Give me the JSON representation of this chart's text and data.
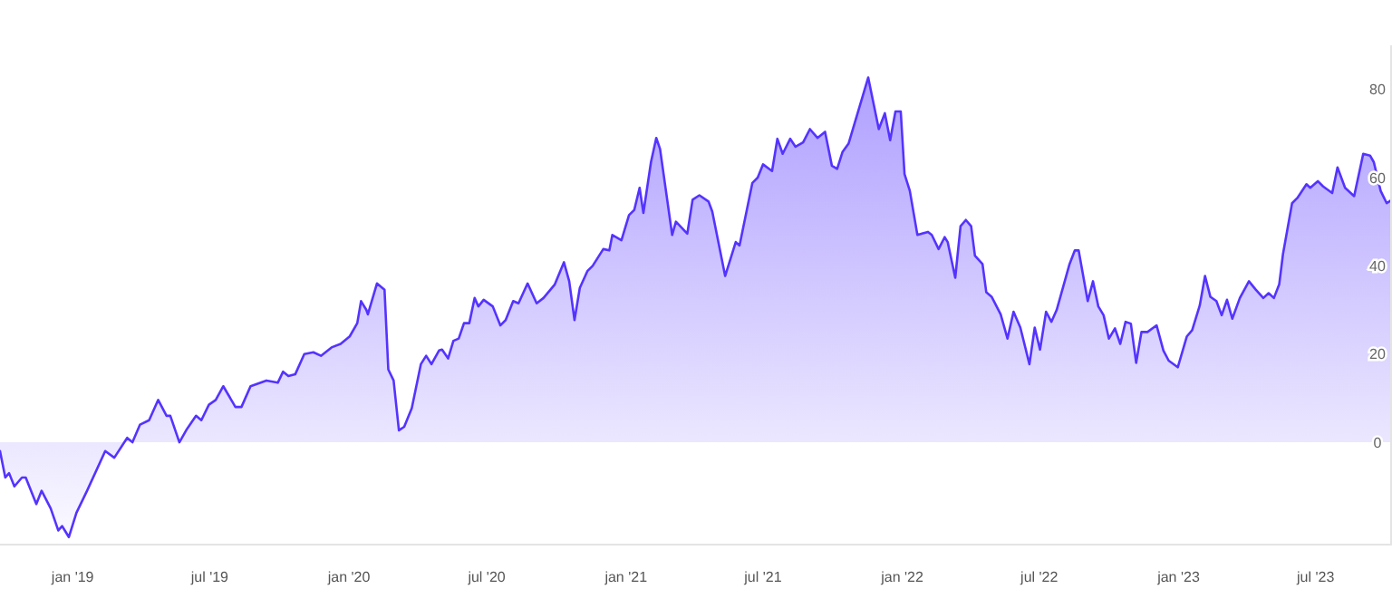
{
  "chart_data": {
    "type": "area",
    "xlim": [
      "2018-09-27",
      "2023-10-10"
    ],
    "ylim": [
      -23,
      90
    ],
    "xticks": [
      {
        "value": "2019-01-01",
        "label": "jan '19"
      },
      {
        "value": "2019-07-01",
        "label": "jul '19"
      },
      {
        "value": "2020-01-01",
        "label": "jan '20"
      },
      {
        "value": "2020-07-01",
        "label": "jul '20"
      },
      {
        "value": "2021-01-01",
        "label": "jan '21"
      },
      {
        "value": "2021-07-01",
        "label": "jul '21"
      },
      {
        "value": "2022-01-01",
        "label": "jan '22"
      },
      {
        "value": "2022-07-01",
        "label": "jul '22"
      },
      {
        "value": "2023-01-01",
        "label": "jan '23"
      },
      {
        "value": "2023-07-01",
        "label": "jul '23"
      }
    ],
    "yticks": [
      0,
      20,
      40,
      60,
      80
    ],
    "grid": false,
    "x": [
      "2018-09-27",
      "2018-10-04",
      "2018-10-09",
      "2018-10-16",
      "2018-10-26",
      "2018-10-31",
      "2018-11-14",
      "2018-11-21",
      "2018-12-03",
      "2018-12-13",
      "2018-12-18",
      "2018-12-27",
      "2019-01-06",
      "2019-01-20",
      "2019-02-13",
      "2019-02-25",
      "2019-03-14",
      "2019-03-21",
      "2019-03-31",
      "2019-04-12",
      "2019-04-24",
      "2019-05-05",
      "2019-05-10",
      "2019-05-22",
      "2019-06-01",
      "2019-06-13",
      "2019-06-20",
      "2019-06-30",
      "2019-07-09",
      "2019-07-19",
      "2019-08-04",
      "2019-08-12",
      "2019-08-24",
      "2019-09-14",
      "2019-09-29",
      "2019-10-06",
      "2019-10-13",
      "2019-10-22",
      "2019-11-03",
      "2019-11-15",
      "2019-11-25",
      "2019-12-09",
      "2019-12-21",
      "2020-01-02",
      "2020-01-12",
      "2020-01-17",
      "2020-01-24",
      "2020-01-26",
      "2020-02-07",
      "2020-02-17",
      "2020-02-22",
      "2020-02-29",
      "2020-03-07",
      "2020-03-14",
      "2020-03-24",
      "2020-04-05",
      "2020-04-12",
      "2020-04-19",
      "2020-04-29",
      "2020-05-03",
      "2020-05-11",
      "2020-05-18",
      "2020-05-25",
      "2020-06-01",
      "2020-06-08",
      "2020-06-15",
      "2020-06-20",
      "2020-06-27",
      "2020-07-09",
      "2020-07-19",
      "2020-07-26",
      "2020-08-05",
      "2020-08-12",
      "2020-08-24",
      "2020-09-05",
      "2020-09-14",
      "2020-09-29",
      "2020-10-11",
      "2020-10-18",
      "2020-10-25",
      "2020-11-01",
      "2020-11-11",
      "2020-11-18",
      "2020-12-02",
      "2020-12-10",
      "2020-12-14",
      "2020-12-26",
      "2021-01-05",
      "2021-01-12",
      "2021-01-19",
      "2021-01-24",
      "2021-02-03",
      "2021-02-10",
      "2021-02-15",
      "2021-03-03",
      "2021-03-08",
      "2021-03-23",
      "2021-03-30",
      "2021-04-08",
      "2021-04-20",
      "2021-04-25",
      "2021-05-12",
      "2021-05-26",
      "2021-05-31",
      "2021-06-17",
      "2021-06-24",
      "2021-07-01",
      "2021-07-13",
      "2021-07-20",
      "2021-07-27",
      "2021-08-06",
      "2021-08-13",
      "2021-08-23",
      "2021-09-01",
      "2021-09-11",
      "2021-09-21",
      "2021-09-30",
      "2021-10-07",
      "2021-10-14",
      "2021-10-22",
      "2021-11-17",
      "2021-12-01",
      "2021-12-09",
      "2021-12-16",
      "2021-12-23",
      "2021-12-30",
      "2022-01-04",
      "2022-01-11",
      "2022-01-21",
      "2022-02-04",
      "2022-02-09",
      "2022-02-18",
      "2022-02-26",
      "2022-03-02",
      "2022-03-12",
      "2022-03-19",
      "2022-03-26",
      "2022-04-02",
      "2022-04-07",
      "2022-04-17",
      "2022-04-22",
      "2022-04-29",
      "2022-05-11",
      "2022-05-20",
      "2022-05-28",
      "2022-06-06",
      "2022-06-18",
      "2022-06-25",
      "2022-07-02",
      "2022-07-10",
      "2022-07-17",
      "2022-07-24",
      "2022-08-10",
      "2022-08-17",
      "2022-08-22",
      "2022-09-03",
      "2022-09-10",
      "2022-09-17",
      "2022-09-24",
      "2022-10-01",
      "2022-10-09",
      "2022-10-16",
      "2022-10-23",
      "2022-10-30",
      "2022-11-06",
      "2022-11-13",
      "2022-11-21",
      "2022-12-03",
      "2022-12-12",
      "2022-12-19",
      "2022-12-31",
      "2023-01-12",
      "2023-01-19",
      "2023-01-29",
      "2023-02-05",
      "2023-02-12",
      "2023-02-20",
      "2023-02-27",
      "2023-03-06",
      "2023-03-13",
      "2023-03-23",
      "2023-04-04",
      "2023-04-13",
      "2023-04-23",
      "2023-04-30",
      "2023-05-07",
      "2023-05-14",
      "2023-05-19",
      "2023-05-31",
      "2023-06-07",
      "2023-06-19",
      "2023-06-24",
      "2023-07-04",
      "2023-07-11",
      "2023-07-23",
      "2023-07-30",
      "2023-08-09",
      "2023-08-21",
      "2023-09-02",
      "2023-09-11",
      "2023-09-16",
      "2023-09-25",
      "2023-10-03",
      "2023-10-10"
    ],
    "series": [
      {
        "color": "#5533ff",
        "values": [
          -2,
          -8,
          -7,
          -10,
          -8,
          -8,
          -14,
          -11,
          -15,
          -20,
          -19,
          -21.5,
          -16,
          -11,
          -2,
          -3.5,
          1,
          0,
          4,
          5,
          9.6,
          6,
          6,
          0,
          3,
          6,
          5,
          8.5,
          9.6,
          12.7,
          8,
          8,
          12.7,
          14,
          13.5,
          16,
          15,
          15.4,
          20,
          20.4,
          19.6,
          21.5,
          22.3,
          24,
          27,
          32,
          30,
          29,
          36,
          34.6,
          16.5,
          14,
          2.7,
          3.5,
          7.7,
          17.7,
          19.6,
          17.7,
          20.8,
          21,
          19,
          23,
          23.5,
          27,
          27,
          32.7,
          30.8,
          32.3,
          30.8,
          26.5,
          27.7,
          32,
          31.5,
          36,
          31.5,
          32.7,
          35.8,
          40.8,
          36.5,
          27.7,
          35,
          38.8,
          40,
          43.8,
          43.5,
          47,
          45.8,
          51.5,
          52.7,
          57.7,
          52,
          63.5,
          69,
          66.5,
          47,
          50,
          47.3,
          55,
          56,
          54.6,
          52.3,
          37.7,
          45.4,
          44.6,
          58.8,
          60,
          63,
          61.5,
          68.8,
          65.4,
          68.8,
          67,
          68,
          71,
          69,
          70.4,
          62.7,
          62,
          65.8,
          67.7,
          82.7,
          71,
          74.6,
          68.5,
          75,
          75,
          60.8,
          57,
          47,
          47.7,
          47,
          43.8,
          46.5,
          45.4,
          37.3,
          49,
          50.4,
          49,
          42.3,
          40.4,
          34,
          33,
          29,
          23.5,
          29.6,
          26,
          17.7,
          26,
          21,
          29.6,
          27.3,
          30,
          40.4,
          43.5,
          43.5,
          32,
          36.5,
          30.8,
          28.8,
          23.5,
          25.8,
          22.3,
          27.3,
          26.9,
          18,
          25,
          25,
          26.5,
          20.8,
          18.5,
          17,
          24,
          25.4,
          31,
          37.7,
          33,
          32,
          28.8,
          32.3,
          28,
          32.7,
          36.5,
          34.6,
          32.7,
          33.8,
          32.7,
          35.8,
          42.7,
          54.2,
          55.4,
          58.5,
          57.7,
          59.2,
          58,
          56.5,
          62.3,
          57.7,
          55.8,
          65.4,
          65,
          63.5,
          57,
          54.2,
          55
        ]
      }
    ]
  }
}
